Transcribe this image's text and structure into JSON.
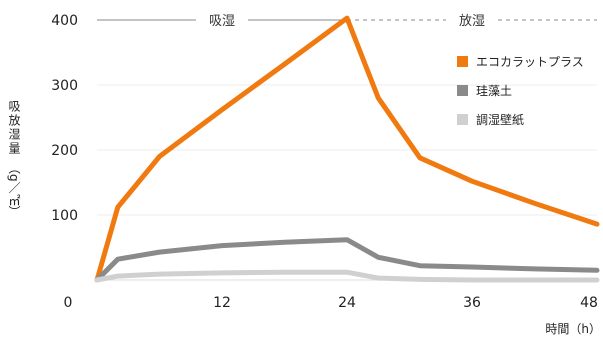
{
  "chart_data": {
    "type": "line",
    "xlabel": "時間（h）",
    "ylabel": "吸放湿量",
    "yunit": "（g／㎡）",
    "xlim": [
      0,
      48
    ],
    "ylim": [
      0,
      400
    ],
    "xticks": [
      0,
      12,
      24,
      36,
      48
    ],
    "yticks": [
      100,
      200,
      300,
      400
    ],
    "xtick_labels": [
      "0",
      "12",
      "24",
      "36",
      "48"
    ],
    "ytick_labels": [
      "100",
      "200",
      "300",
      "400"
    ],
    "phases": [
      {
        "label": "吸湿",
        "x_range": [
          0,
          24
        ],
        "line_style": "solid"
      },
      {
        "label": "放湿",
        "x_range": [
          24,
          48
        ],
        "line_style": "dashed"
      }
    ],
    "legend_position": "top-right",
    "series": [
      {
        "name": "エコカラットプラス",
        "color": "#F07A10",
        "x": [
          0,
          2,
          6,
          12,
          18,
          24,
          27,
          31,
          36,
          42,
          48
        ],
        "y": [
          0,
          112,
          190,
          262,
          332,
          403,
          280,
          188,
          152,
          118,
          86
        ]
      },
      {
        "name": "珪藻土",
        "color": "#8A8A8A",
        "x": [
          0,
          2,
          6,
          12,
          18,
          24,
          27,
          31,
          36,
          42,
          48
        ],
        "y": [
          0,
          32,
          43,
          53,
          58,
          62,
          35,
          22,
          20,
          17,
          15
        ]
      },
      {
        "name": "調湿壁紙",
        "color": "#D0D0D0",
        "x": [
          0,
          2,
          6,
          12,
          18,
          24,
          27,
          31,
          36,
          42,
          48
        ],
        "y": [
          0,
          6,
          9,
          11,
          12,
          12,
          3,
          1,
          0,
          0,
          0
        ]
      }
    ]
  }
}
